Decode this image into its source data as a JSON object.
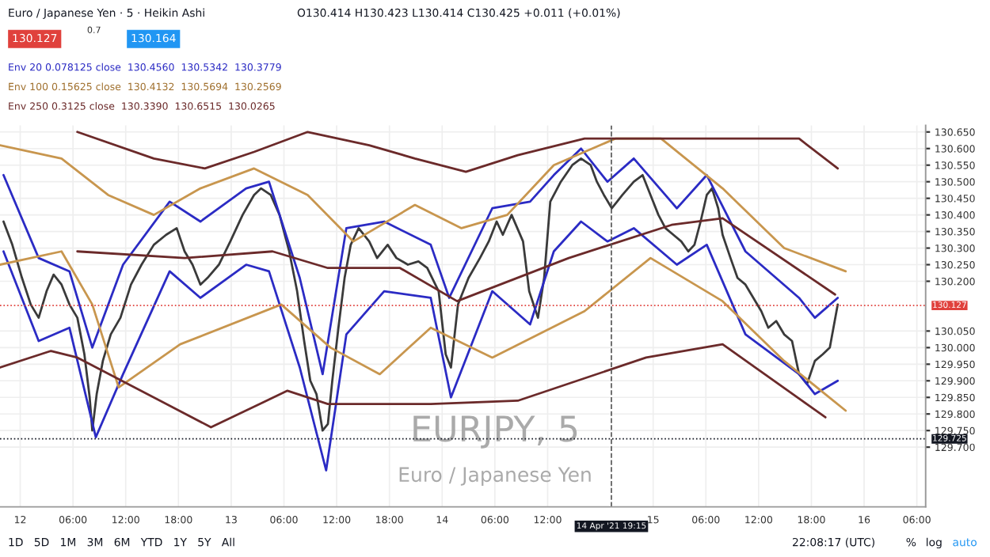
{
  "chart_data": {
    "type": "line",
    "title": "Euro / Japanese Yen · 5 · Heikin Ashi",
    "subtitle": "O130.414 H130.423 L130.414 C130.425 +0.011 (+0.01%)",
    "xlim": [
      "2021-04-11T21:42",
      "2021-04-16T07:00"
    ],
    "xticks": [
      {
        "value": "2021-04-12",
        "label": "12"
      },
      {
        "value": "2021-04-12T06:00",
        "label": "06:00"
      },
      {
        "value": "2021-04-12T12:00",
        "label": "12:00"
      },
      {
        "value": "2021-04-12T18:00",
        "label": "18:00"
      },
      {
        "value": "2021-04-13",
        "label": "13"
      },
      {
        "value": "2021-04-13T06:00",
        "label": "06:00"
      },
      {
        "value": "2021-04-13T12:00",
        "label": "12:00"
      },
      {
        "value": "2021-04-13T18:00",
        "label": "18:00"
      },
      {
        "value": "2021-04-14",
        "label": "14"
      },
      {
        "value": "2021-04-14T06:00",
        "label": "06:00"
      },
      {
        "value": "2021-04-14T12:00",
        "label": "12:00"
      },
      {
        "value": "2021-04-15",
        "label": "15"
      },
      {
        "value": "2021-04-15T06:00",
        "label": "06:00"
      },
      {
        "value": "2021-04-15T12:00",
        "label": "12:00"
      },
      {
        "value": "2021-04-15T18:00",
        "label": "18:00"
      },
      {
        "value": "2021-04-16",
        "label": "16"
      },
      {
        "value": "2021-04-16T06:00",
        "label": "06:00"
      }
    ],
    "ylim": [
      129.52,
      130.67
    ],
    "yticks": [
      {
        "value": 129.7,
        "label": "129.700"
      },
      {
        "value": 129.75,
        "label": "129.750"
      },
      {
        "value": 129.8,
        "label": "129.800"
      },
      {
        "value": 129.85,
        "label": "129.850"
      },
      {
        "value": 129.9,
        "label": "129.900"
      },
      {
        "value": 129.95,
        "label": "129.950"
      },
      {
        "value": 130.0,
        "label": "130.000"
      },
      {
        "value": 130.05,
        "label": "130.050"
      },
      {
        "value": 130.2,
        "label": "130.200"
      },
      {
        "value": 130.25,
        "label": "130.250"
      },
      {
        "value": 130.3,
        "label": "130.300"
      },
      {
        "value": 130.35,
        "label": "130.350"
      },
      {
        "value": 130.4,
        "label": "130.400"
      },
      {
        "value": 130.45,
        "label": "130.450"
      },
      {
        "value": 130.5,
        "label": "130.500"
      },
      {
        "value": 130.55,
        "label": "130.550"
      },
      {
        "value": 130.6,
        "label": "130.600"
      },
      {
        "value": 130.65,
        "label": "130.650"
      }
    ],
    "grid": true,
    "marker": "none",
    "line_style": "solid",
    "series": [
      {
        "color": "#3a3a3a",
        "x": [
          "2021-04-11T22:06",
          "2021-04-11T23:06",
          "2021-04-12T00:12",
          "2021-04-12T01:12",
          "2021-04-12T02:06",
          "2021-04-12T03:00",
          "2021-04-12T03:48",
          "2021-04-12T04:42",
          "2021-04-12T05:36",
          "2021-04-12T06:30",
          "2021-04-12T07:18",
          "2021-04-12T07:54",
          "2021-04-12T08:12",
          "2021-04-12T08:42",
          "2021-04-12T09:24",
          "2021-04-12T10:18",
          "2021-04-12T11:24",
          "2021-04-12T12:36",
          "2021-04-12T13:48",
          "2021-04-12T15:12",
          "2021-04-12T16:36",
          "2021-04-12T17:48",
          "2021-04-12T18:42",
          "2021-04-12T19:36",
          "2021-04-12T20:30",
          "2021-04-12T21:18",
          "2021-04-12T22:36",
          "2021-04-12T23:54",
          "2021-04-13T01:18",
          "2021-04-13T02:36",
          "2021-04-13T03:24",
          "2021-04-13T04:30",
          "2021-04-13T05:30",
          "2021-04-13T06:36",
          "2021-04-13T07:30",
          "2021-04-13T08:18",
          "2021-04-13T09:00",
          "2021-04-13T09:42",
          "2021-04-13T10:24",
          "2021-04-13T11:00",
          "2021-04-13T11:30",
          "2021-04-13T12:12",
          "2021-04-13T12:54",
          "2021-04-13T13:36",
          "2021-04-13T14:30",
          "2021-04-13T15:42",
          "2021-04-13T16:36",
          "2021-04-13T17:48",
          "2021-04-13T18:48",
          "2021-04-13T20:06",
          "2021-04-13T21:18",
          "2021-04-13T22:18",
          "2021-04-13T23:36",
          "2021-04-14T00:24",
          "2021-04-14T01:00",
          "2021-04-14T01:48",
          "2021-04-14T03:00",
          "2021-04-14T04:18",
          "2021-04-14T05:18",
          "2021-04-14T06:12",
          "2021-04-14T06:54",
          "2021-04-14T07:54",
          "2021-04-14T09:12",
          "2021-04-14T09:54",
          "2021-04-14T10:54",
          "2021-04-14T11:36",
          "2021-04-14T12:18",
          "2021-04-14T13:30",
          "2021-04-14T14:48",
          "2021-04-14T15:48",
          "2021-04-14T16:54",
          "2021-04-14T17:36",
          "2021-04-14T18:24",
          "2021-04-14T19:18",
          "2021-04-14T20:30",
          "2021-04-14T21:48",
          "2021-04-14T22:48",
          "2021-04-14T23:42",
          "2021-04-15T00:36",
          "2021-04-15T01:24",
          "2021-04-15T02:18",
          "2021-04-15T03:12",
          "2021-04-15T04:00",
          "2021-04-15T04:42",
          "2021-04-15T05:24",
          "2021-04-15T06:06",
          "2021-04-15T06:42",
          "2021-04-15T07:24",
          "2021-04-15T07:54",
          "2021-04-15T08:48",
          "2021-04-15T09:36",
          "2021-04-15T10:30",
          "2021-04-15T11:24",
          "2021-04-15T12:18",
          "2021-04-15T13:06",
          "2021-04-15T14:00",
          "2021-04-15T14:54",
          "2021-04-15T15:48",
          "2021-04-15T16:36",
          "2021-04-15T17:30",
          "2021-04-15T18:24",
          "2021-04-15T19:18",
          "2021-04-15T20:06",
          "2021-04-15T21:00"
        ],
        "values": [
          130.38,
          130.31,
          130.21,
          130.13,
          130.09,
          130.17,
          130.22,
          130.19,
          130.13,
          130.09,
          129.98,
          129.85,
          129.75,
          129.86,
          129.96,
          130.04,
          130.09,
          130.19,
          130.25,
          130.31,
          130.34,
          130.36,
          130.29,
          130.25,
          130.19,
          130.21,
          130.25,
          130.32,
          130.4,
          130.46,
          130.48,
          130.46,
          130.4,
          130.29,
          130.17,
          130.02,
          129.9,
          129.86,
          129.75,
          129.77,
          129.9,
          130.06,
          130.21,
          130.31,
          130.36,
          130.32,
          130.27,
          130.31,
          130.27,
          130.25,
          130.26,
          130.24,
          130.17,
          129.98,
          129.94,
          130.13,
          130.21,
          130.27,
          130.32,
          130.38,
          130.34,
          130.4,
          130.32,
          130.17,
          130.09,
          130.21,
          130.44,
          130.5,
          130.55,
          130.57,
          130.55,
          130.5,
          130.46,
          130.42,
          130.46,
          130.5,
          130.52,
          130.46,
          130.4,
          130.36,
          130.34,
          130.32,
          130.29,
          130.31,
          130.38,
          130.46,
          130.48,
          130.42,
          130.34,
          130.27,
          130.21,
          130.19,
          130.15,
          130.11,
          130.06,
          130.08,
          130.04,
          130.02,
          129.92,
          129.89,
          129.96,
          129.98,
          130.0,
          130.13
        ]
      },
      {
        "color": "#2b2bc4",
        "x": [
          "2021-04-11T22:06",
          "2021-04-12T02:06",
          "2021-04-12T05:36",
          "2021-04-12T08:12",
          "2021-04-12T11:42",
          "2021-04-12T17:00",
          "2021-04-12T20:30",
          "2021-04-13T01:42",
          "2021-04-13T04:18",
          "2021-04-13T07:48",
          "2021-04-13T10:24",
          "2021-04-13T13:06",
          "2021-04-13T17:24",
          "2021-04-13T22:42",
          "2021-04-14T00:48",
          "2021-04-14T05:42",
          "2021-04-14T10:00",
          "2021-04-14T12:42",
          "2021-04-14T15:48",
          "2021-04-14T18:48",
          "2021-04-14T21:48",
          "2021-04-15T02:42",
          "2021-04-15T06:06",
          "2021-04-15T10:30",
          "2021-04-15T16:36",
          "2021-04-15T18:24",
          "2021-04-15T21:00"
        ],
        "values": [
          130.52,
          130.27,
          130.23,
          130.0,
          130.25,
          130.44,
          130.38,
          130.48,
          130.5,
          130.21,
          129.92,
          130.36,
          130.38,
          130.31,
          130.15,
          130.42,
          130.44,
          130.52,
          130.6,
          130.5,
          130.57,
          130.42,
          130.52,
          130.29,
          130.15,
          130.09,
          130.15
        ]
      },
      {
        "color": "#2b2bc4",
        "x": [
          "2021-04-11T22:06",
          "2021-04-12T02:06",
          "2021-04-12T05:36",
          "2021-04-12T08:36",
          "2021-04-12T11:42",
          "2021-04-12T17:00",
          "2021-04-12T20:30",
          "2021-04-13T01:42",
          "2021-04-13T04:18",
          "2021-04-13T07:48",
          "2021-04-13T10:48",
          "2021-04-13T13:06",
          "2021-04-13T17:24",
          "2021-04-13T22:42",
          "2021-04-14T01:00",
          "2021-04-14T05:42",
          "2021-04-14T10:00",
          "2021-04-14T12:42",
          "2021-04-14T15:48",
          "2021-04-14T18:48",
          "2021-04-14T21:48",
          "2021-04-15T02:42",
          "2021-04-15T06:06",
          "2021-04-15T10:30",
          "2021-04-15T16:36",
          "2021-04-15T18:24",
          "2021-04-15T21:00"
        ],
        "values": [
          130.29,
          130.02,
          130.06,
          129.73,
          129.92,
          130.23,
          130.15,
          130.25,
          130.23,
          129.94,
          129.63,
          130.04,
          130.17,
          130.15,
          129.85,
          130.17,
          130.07,
          130.29,
          130.38,
          130.32,
          130.36,
          130.25,
          130.31,
          130.04,
          129.92,
          129.86,
          129.9
        ]
      },
      {
        "color": "#c8964e",
        "x": [
          "2021-04-11T21:42",
          "2021-04-12T04:42",
          "2021-04-12T10:00",
          "2021-04-12T15:12",
          "2021-04-12T20:30",
          "2021-04-13T02:36",
          "2021-04-13T08:42",
          "2021-04-13T13:54",
          "2021-04-13T20:54",
          "2021-04-14T02:12",
          "2021-04-14T07:24",
          "2021-04-14T12:42",
          "2021-04-14T19:42",
          "2021-04-15T00:54",
          "2021-04-15T07:54",
          "2021-04-15T14:54",
          "2021-04-15T21:54"
        ],
        "values": [
          130.61,
          130.57,
          130.46,
          130.4,
          130.48,
          130.54,
          130.46,
          130.32,
          130.43,
          130.36,
          130.4,
          130.55,
          130.63,
          130.63,
          130.48,
          130.3,
          130.23
        ]
      },
      {
        "color": "#c8964e",
        "x": [
          "2021-04-11T21:42",
          "2021-04-12T04:42",
          "2021-04-12T08:12",
          "2021-04-12T11:12",
          "2021-04-12T18:12",
          "2021-04-13T05:42",
          "2021-04-13T11:18",
          "2021-04-13T16:54",
          "2021-04-13T22:42",
          "2021-04-14T05:42",
          "2021-04-14T16:12",
          "2021-04-14T23:42",
          "2021-04-15T07:54",
          "2021-04-15T14:54",
          "2021-04-15T21:54"
        ],
        "values": [
          130.25,
          130.29,
          130.13,
          129.88,
          130.01,
          130.13,
          130.0,
          129.92,
          130.06,
          129.97,
          130.11,
          130.27,
          130.14,
          129.96,
          129.81
        ]
      },
      {
        "color": "#6b2a2a",
        "x": [
          "2021-04-12T06:30",
          "2021-04-12T15:12",
          "2021-04-12T21:00",
          "2021-04-13T02:36",
          "2021-04-13T08:42",
          "2021-04-13T15:42",
          "2021-04-13T20:54",
          "2021-04-14T02:42",
          "2021-04-14T08:36",
          "2021-04-14T16:12",
          "2021-04-15T16:36",
          "2021-04-15T21:00"
        ],
        "values": [
          130.65,
          130.57,
          130.54,
          130.59,
          130.65,
          130.61,
          130.57,
          130.53,
          130.58,
          130.63,
          130.63,
          130.54
        ]
      },
      {
        "color": "#6b2a2a",
        "x": [
          "2021-04-12T06:30",
          "2021-04-12T18:42",
          "2021-04-13T04:42",
          "2021-04-13T11:00",
          "2021-04-13T19:12",
          "2021-04-14T01:42",
          "2021-04-14T14:24",
          "2021-04-15T02:06",
          "2021-04-15T07:54",
          "2021-04-15T20:42"
        ],
        "values": [
          130.29,
          130.27,
          130.29,
          130.24,
          130.24,
          130.14,
          130.27,
          130.37,
          130.39,
          130.16
        ]
      },
      {
        "color": "#6b2a2a",
        "x": [
          "2021-04-11T21:42",
          "2021-04-12T03:30",
          "2021-04-12T06:30",
          "2021-04-12T21:42",
          "2021-04-13T06:24",
          "2021-04-13T11:00",
          "2021-04-13T22:42",
          "2021-04-14T08:36",
          "2021-04-14T23:12",
          "2021-04-15T07:54",
          "2021-04-15T19:36"
        ],
        "values": [
          129.94,
          129.99,
          129.97,
          129.76,
          129.87,
          129.83,
          129.83,
          129.84,
          129.97,
          130.01,
          129.79
        ]
      }
    ],
    "ref_lines": [
      {
        "axis": "x",
        "value": "2021-04-14T19:15",
        "label": "14 Apr '21 19:15",
        "color": "#555555",
        "line_style": "dashed"
      },
      {
        "axis": "y",
        "value": 130.127,
        "label": "130.127",
        "color": "#e0413c",
        "line_style": "dotted"
      },
      {
        "axis": "y",
        "value": 129.725,
        "label": "129.725",
        "color": "#131722",
        "line_style": "dotted"
      }
    ],
    "annotations": [
      "130.127",
      "0.7",
      "130.164",
      "Env 20 0.078125 close  130.4560  130.5342  130.3779",
      "Env 100 0.15625 close  130.4132  130.5694  130.2569",
      "Env 250 0.3125 close  130.3390  130.6515  130.0265",
      "EURJPY, 5",
      "Euro / Japanese Yen",
      "1D   5D   1M   3M   6M   YTD   1Y   5Y   All",
      "22:08:17 (UTC)",
      "%",
      "log",
      "auto"
    ]
  }
}
